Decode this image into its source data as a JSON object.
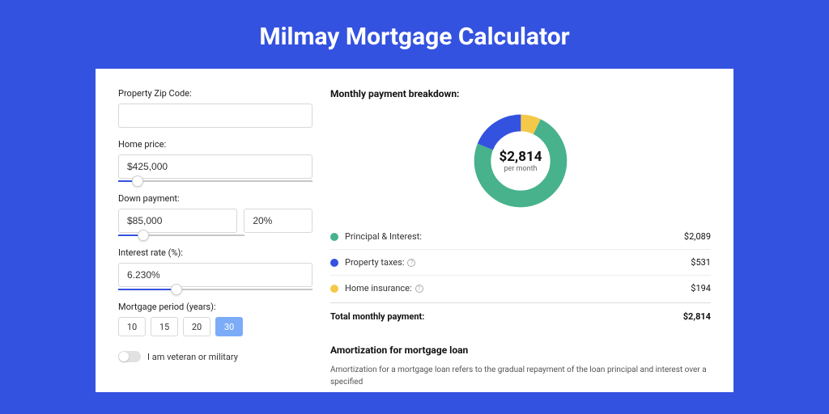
{
  "header": {
    "title": "Milmay Mortgage Calculator"
  },
  "form": {
    "zip": {
      "label": "Property Zip Code:",
      "value": ""
    },
    "price": {
      "label": "Home price:",
      "value": "$425,000",
      "slider_pct": 10
    },
    "down": {
      "label": "Down payment:",
      "value": "$85,000",
      "pct_value": "20%",
      "slider_pct": 20
    },
    "rate": {
      "label": "Interest rate (%):",
      "value": "6.230%",
      "slider_pct": 30
    },
    "period": {
      "label": "Mortgage period (years):",
      "options": [
        "10",
        "15",
        "20",
        "30"
      ],
      "active_index": 3
    },
    "veteran": {
      "label": "I am veteran or military"
    }
  },
  "breakdown": {
    "title": "Monthly payment breakdown:",
    "center_amount": "$2,814",
    "center_sub": "per month",
    "items": [
      {
        "label": "Principal & Interest:",
        "value": "$2,089",
        "color": "#47b28b",
        "pct": 74,
        "info": false
      },
      {
        "label": "Property taxes:",
        "value": "$531",
        "color": "#3452e0",
        "pct": 19,
        "info": true
      },
      {
        "label": "Home insurance:",
        "value": "$194",
        "color": "#f4c949",
        "pct": 7,
        "info": true
      }
    ],
    "total_label": "Total monthly payment:",
    "total_value": "$2,814"
  },
  "amort": {
    "title": "Amortization for mortgage loan",
    "text": "Amortization for a mortgage loan refers to the gradual repayment of the loan principal and interest over a specified"
  },
  "colors": {
    "page_bg": "#3452e0",
    "donut_green": "#47b28b",
    "donut_blue": "#3452e0",
    "donut_yellow": "#f4c949"
  }
}
